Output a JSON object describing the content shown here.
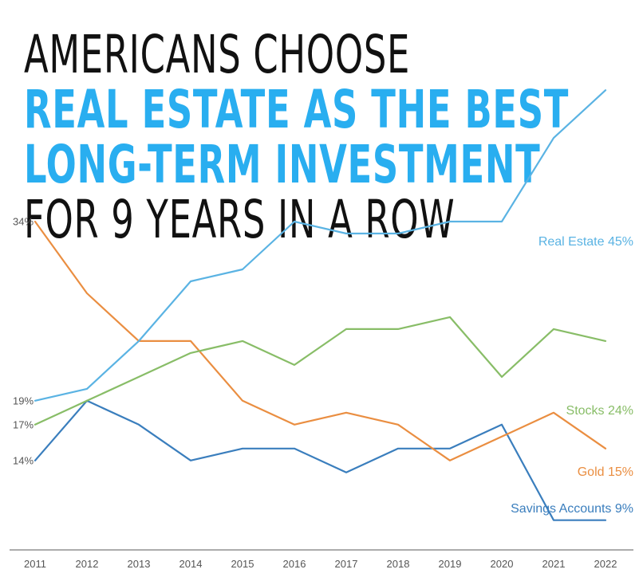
{
  "headline": {
    "line1": "AMERICANS CHOOSE",
    "line2": "REAL ESTATE AS THE BEST",
    "line3": "LONG-TERM INVESTMENT",
    "line4": "FOR 9 YEARS IN A ROW"
  },
  "chart_data": {
    "type": "line",
    "x": [
      "2011",
      "2012",
      "2013",
      "2014",
      "2015",
      "2016",
      "2017",
      "2018",
      "2019",
      "2020",
      "2021",
      "2022"
    ],
    "y_tick_labels": [
      {
        "value": 34,
        "label": "34%"
      },
      {
        "value": 19,
        "label": "19%"
      },
      {
        "value": 17,
        "label": "17%"
      },
      {
        "value": 14,
        "label": "14%"
      }
    ],
    "ylim": [
      7,
      48
    ],
    "legend": "end-of-line labels",
    "grid": false,
    "series": [
      {
        "name": "Real Estate 45%",
        "color": "#5ab3e3",
        "values": [
          19,
          20,
          24,
          29,
          30,
          34,
          33,
          33,
          34,
          34,
          41,
          45
        ]
      },
      {
        "name": "Stocks 24%",
        "color": "#88bd67",
        "values": [
          17,
          19,
          21,
          23,
          24,
          22,
          25,
          25,
          26,
          21,
          25,
          24
        ]
      },
      {
        "name": "Gold 15%",
        "color": "#ea8e41",
        "values": [
          34,
          28,
          24,
          24,
          19,
          17,
          18,
          17,
          14,
          16,
          18,
          15
        ]
      },
      {
        "name": "Savings Accounts 9%",
        "color": "#3a7ebd",
        "values": [
          14,
          19,
          17,
          14,
          15,
          15,
          13,
          15,
          15,
          17,
          9,
          9
        ]
      }
    ]
  }
}
